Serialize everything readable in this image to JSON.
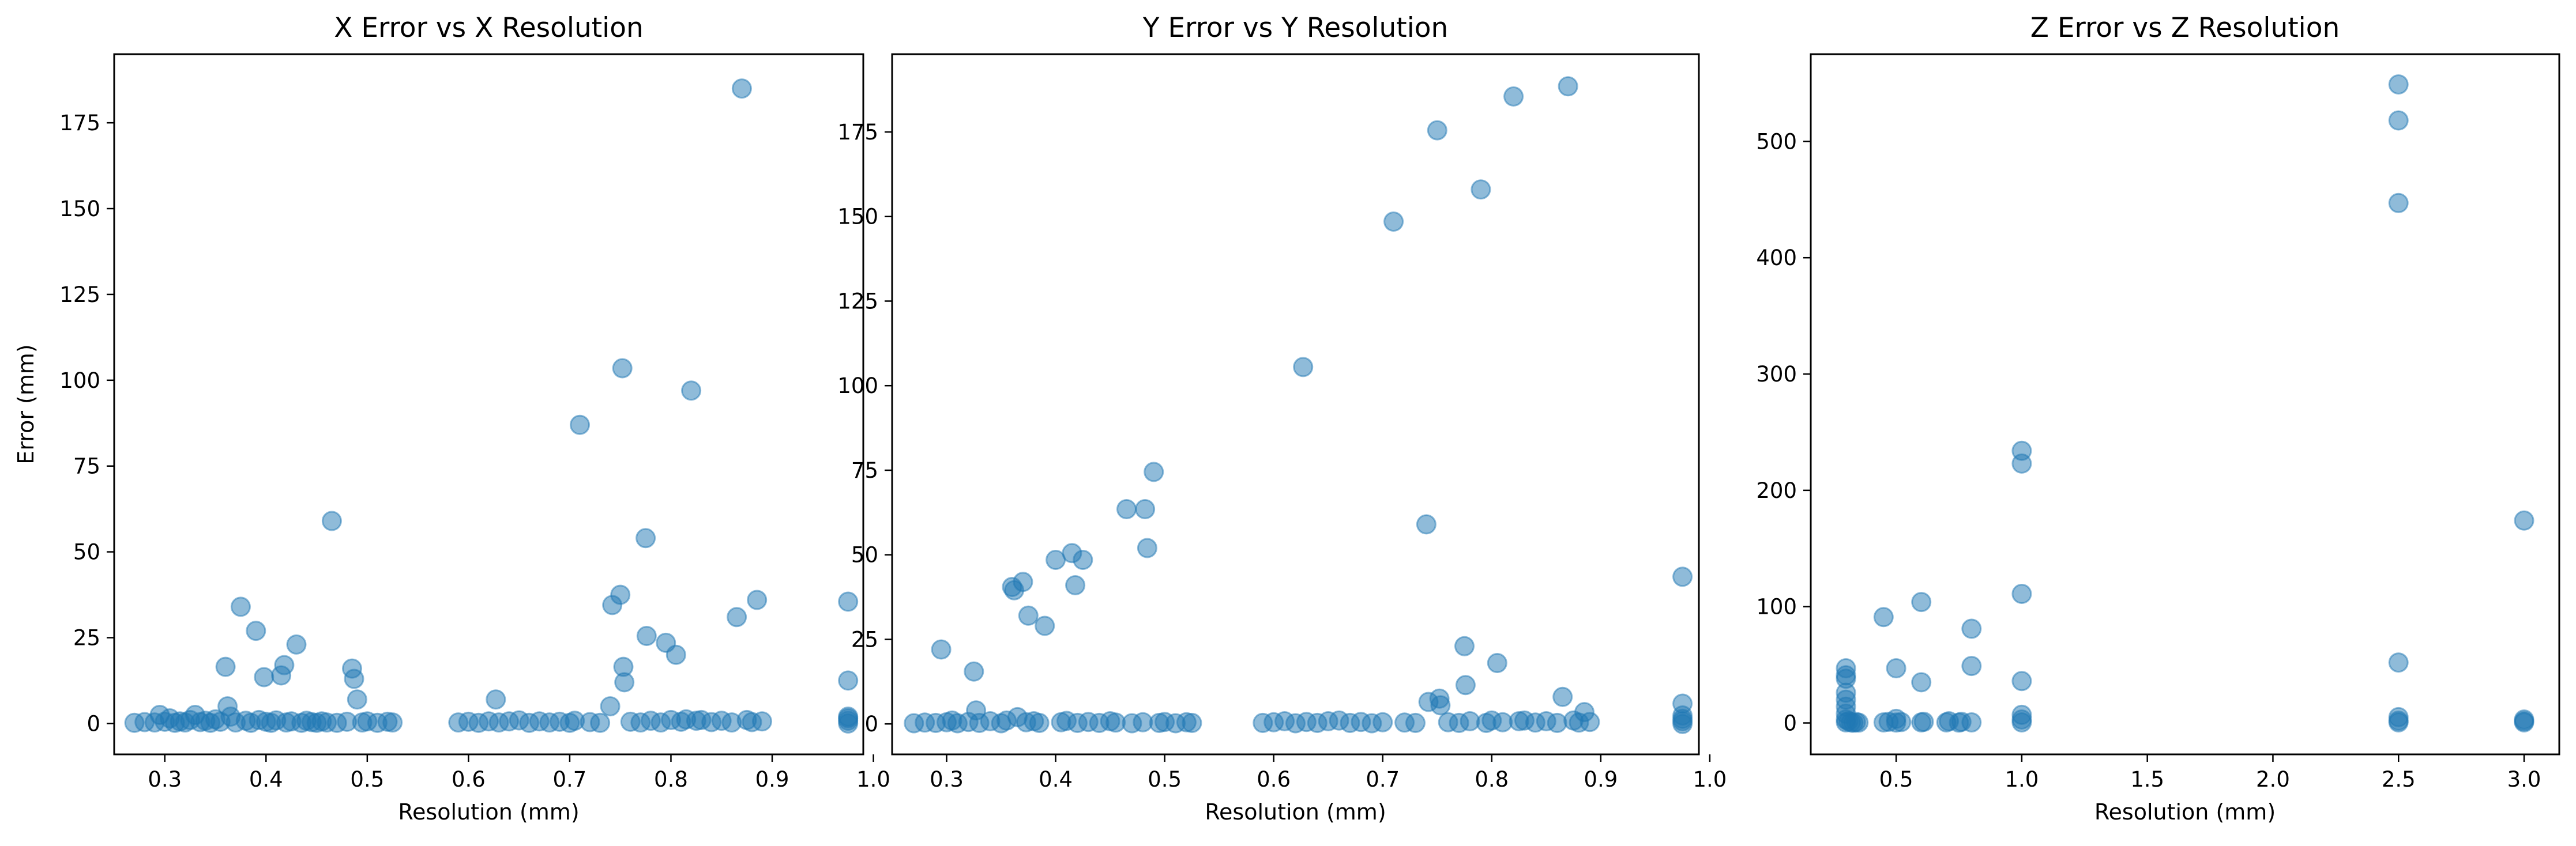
{
  "chart_data": [
    {
      "type": "scatter",
      "title": "X Error vs X Resolution",
      "xlabel": "Resolution (mm)",
      "ylabel": "Error (mm)",
      "xlim": [
        0.25,
        0.99
      ],
      "ylim": [
        -9,
        195
      ],
      "xticks": [
        0.3,
        0.4,
        0.5,
        0.6,
        0.7,
        0.8,
        0.9,
        1.0
      ],
      "xtick_labels": [
        "0.3",
        "0.4",
        "0.5",
        "0.6",
        "0.7",
        "0.8",
        "0.9",
        "1.0"
      ],
      "yticks": [
        0,
        25,
        50,
        75,
        100,
        125,
        150,
        175
      ],
      "ytick_labels": [
        "0",
        "25",
        "50",
        "75",
        "100",
        "125",
        "150",
        "175"
      ],
      "grid": false,
      "color": "#1f77b4",
      "points": [
        [
          0.27,
          0.2
        ],
        [
          0.28,
          0.4
        ],
        [
          0.29,
          0.3
        ],
        [
          0.295,
          2.5
        ],
        [
          0.3,
          0.5
        ],
        [
          0.305,
          1.5
        ],
        [
          0.31,
          0.2
        ],
        [
          0.315,
          0.6
        ],
        [
          0.32,
          0.3
        ],
        [
          0.325,
          1.0
        ],
        [
          0.33,
          2.5
        ],
        [
          0.335,
          0.4
        ],
        [
          0.34,
          0.8
        ],
        [
          0.345,
          0.2
        ],
        [
          0.35,
          1.2
        ],
        [
          0.355,
          0.5
        ],
        [
          0.36,
          16.5
        ],
        [
          0.362,
          5.0
        ],
        [
          0.365,
          2.0
        ],
        [
          0.37,
          0.3
        ],
        [
          0.375,
          34.0
        ],
        [
          0.38,
          0.8
        ],
        [
          0.385,
          0.2
        ],
        [
          0.39,
          27.0
        ],
        [
          0.393,
          1.0
        ],
        [
          0.398,
          13.5
        ],
        [
          0.4,
          0.5
        ],
        [
          0.405,
          0.2
        ],
        [
          0.41,
          0.9
        ],
        [
          0.415,
          14.0
        ],
        [
          0.418,
          17.0
        ],
        [
          0.42,
          0.3
        ],
        [
          0.425,
          0.6
        ],
        [
          0.43,
          23.0
        ],
        [
          0.435,
          0.2
        ],
        [
          0.44,
          0.8
        ],
        [
          0.445,
          0.4
        ],
        [
          0.45,
          0.2
        ],
        [
          0.455,
          0.6
        ],
        [
          0.46,
          0.3
        ],
        [
          0.465,
          59.0
        ],
        [
          0.47,
          0.2
        ],
        [
          0.48,
          0.5
        ],
        [
          0.485,
          16.0
        ],
        [
          0.487,
          13.0
        ],
        [
          0.49,
          7.0
        ],
        [
          0.495,
          0.3
        ],
        [
          0.5,
          0.6
        ],
        [
          0.51,
          0.2
        ],
        [
          0.52,
          0.5
        ],
        [
          0.525,
          0.3
        ],
        [
          0.59,
          0.3
        ],
        [
          0.6,
          0.5
        ],
        [
          0.61,
          0.2
        ],
        [
          0.62,
          0.6
        ],
        [
          0.627,
          7.0
        ],
        [
          0.63,
          0.3
        ],
        [
          0.64,
          0.6
        ],
        [
          0.65,
          0.9
        ],
        [
          0.66,
          0.2
        ],
        [
          0.67,
          0.6
        ],
        [
          0.68,
          0.3
        ],
        [
          0.69,
          0.5
        ],
        [
          0.7,
          0.2
        ],
        [
          0.705,
          0.8
        ],
        [
          0.71,
          87.0
        ],
        [
          0.72,
          0.4
        ],
        [
          0.73,
          0.2
        ],
        [
          0.74,
          5.0
        ],
        [
          0.742,
          34.5
        ],
        [
          0.75,
          37.5
        ],
        [
          0.752,
          103.5
        ],
        [
          0.753,
          16.5
        ],
        [
          0.754,
          12.0
        ],
        [
          0.76,
          0.5
        ],
        [
          0.77,
          0.3
        ],
        [
          0.775,
          54.0
        ],
        [
          0.776,
          25.5
        ],
        [
          0.78,
          0.8
        ],
        [
          0.79,
          0.3
        ],
        [
          0.795,
          23.5
        ],
        [
          0.8,
          1.0
        ],
        [
          0.805,
          20.0
        ],
        [
          0.81,
          0.5
        ],
        [
          0.815,
          1.2
        ],
        [
          0.82,
          97.0
        ],
        [
          0.825,
          0.8
        ],
        [
          0.83,
          1.0
        ],
        [
          0.84,
          0.4
        ],
        [
          0.85,
          0.8
        ],
        [
          0.86,
          0.3
        ],
        [
          0.865,
          31.0
        ],
        [
          0.87,
          185.0
        ],
        [
          0.875,
          1.0
        ],
        [
          0.88,
          0.4
        ],
        [
          0.885,
          36.0
        ],
        [
          0.89,
          0.6
        ],
        [
          0.975,
          0.0
        ],
        [
          0.975,
          0.8
        ],
        [
          0.975,
          1.5
        ],
        [
          0.975,
          2.0
        ],
        [
          0.975,
          12.5
        ],
        [
          0.975,
          35.5
        ]
      ]
    },
    {
      "type": "scatter",
      "title": "Y Error vs Y Resolution",
      "xlabel": "Resolution (mm)",
      "ylabel": "",
      "xlim": [
        0.25,
        0.99
      ],
      "ylim": [
        -9,
        198
      ],
      "xticks": [
        0.3,
        0.4,
        0.5,
        0.6,
        0.7,
        0.8,
        0.9,
        1.0
      ],
      "xtick_labels": [
        "0.3",
        "0.4",
        "0.5",
        "0.6",
        "0.7",
        "0.8",
        "0.9",
        "1.0"
      ],
      "yticks": [
        0,
        25,
        50,
        75,
        100,
        125,
        150,
        175
      ],
      "ytick_labels": [
        "0",
        "25",
        "50",
        "75",
        "100",
        "125",
        "150",
        "175"
      ],
      "grid": false,
      "color": "#1f77b4",
      "points": [
        [
          0.27,
          0.2
        ],
        [
          0.28,
          0.4
        ],
        [
          0.29,
          0.3
        ],
        [
          0.295,
          22.0
        ],
        [
          0.3,
          0.5
        ],
        [
          0.305,
          1.0
        ],
        [
          0.31,
          0.2
        ],
        [
          0.32,
          0.6
        ],
        [
          0.325,
          15.5
        ],
        [
          0.327,
          4.0
        ],
        [
          0.33,
          0.3
        ],
        [
          0.34,
          0.8
        ],
        [
          0.35,
          0.2
        ],
        [
          0.355,
          1.0
        ],
        [
          0.36,
          40.5
        ],
        [
          0.362,
          39.5
        ],
        [
          0.365,
          2.0
        ],
        [
          0.37,
          42.0
        ],
        [
          0.373,
          0.5
        ],
        [
          0.375,
          32.0
        ],
        [
          0.38,
          0.8
        ],
        [
          0.385,
          0.3
        ],
        [
          0.39,
          29.0
        ],
        [
          0.4,
          48.5
        ],
        [
          0.405,
          0.5
        ],
        [
          0.41,
          0.9
        ],
        [
          0.415,
          50.5
        ],
        [
          0.418,
          41.0
        ],
        [
          0.42,
          0.3
        ],
        [
          0.425,
          48.5
        ],
        [
          0.43,
          0.6
        ],
        [
          0.44,
          0.3
        ],
        [
          0.45,
          0.8
        ],
        [
          0.455,
          0.4
        ],
        [
          0.465,
          63.5
        ],
        [
          0.47,
          0.2
        ],
        [
          0.48,
          0.5
        ],
        [
          0.482,
          63.5
        ],
        [
          0.484,
          52.0
        ],
        [
          0.49,
          74.5
        ],
        [
          0.495,
          0.3
        ],
        [
          0.5,
          0.6
        ],
        [
          0.51,
          0.2
        ],
        [
          0.52,
          0.5
        ],
        [
          0.525,
          0.3
        ],
        [
          0.59,
          0.3
        ],
        [
          0.6,
          0.5
        ],
        [
          0.61,
          0.8
        ],
        [
          0.62,
          0.2
        ],
        [
          0.627,
          105.5
        ],
        [
          0.63,
          0.6
        ],
        [
          0.64,
          0.3
        ],
        [
          0.65,
          0.8
        ],
        [
          0.66,
          1.0
        ],
        [
          0.67,
          0.3
        ],
        [
          0.68,
          0.6
        ],
        [
          0.69,
          0.2
        ],
        [
          0.7,
          0.5
        ],
        [
          0.71,
          148.5
        ],
        [
          0.72,
          0.4
        ],
        [
          0.73,
          0.3
        ],
        [
          0.74,
          59.0
        ],
        [
          0.742,
          6.5
        ],
        [
          0.75,
          175.5
        ],
        [
          0.752,
          7.5
        ],
        [
          0.753,
          5.5
        ],
        [
          0.76,
          0.5
        ],
        [
          0.77,
          0.3
        ],
        [
          0.775,
          23.0
        ],
        [
          0.776,
          11.5
        ],
        [
          0.78,
          0.8
        ],
        [
          0.79,
          158.0
        ],
        [
          0.795,
          0.3
        ],
        [
          0.8,
          1.0
        ],
        [
          0.805,
          18.0
        ],
        [
          0.81,
          0.5
        ],
        [
          0.82,
          185.5
        ],
        [
          0.825,
          0.8
        ],
        [
          0.83,
          1.0
        ],
        [
          0.84,
          0.4
        ],
        [
          0.85,
          0.8
        ],
        [
          0.86,
          0.3
        ],
        [
          0.865,
          8.0
        ],
        [
          0.87,
          188.5
        ],
        [
          0.875,
          1.0
        ],
        [
          0.88,
          0.4
        ],
        [
          0.885,
          3.5
        ],
        [
          0.89,
          0.6
        ],
        [
          0.975,
          0.0
        ],
        [
          0.975,
          0.8
        ],
        [
          0.975,
          1.5
        ],
        [
          0.975,
          2.5
        ],
        [
          0.975,
          6.0
        ],
        [
          0.975,
          43.5
        ]
      ]
    },
    {
      "type": "scatter",
      "title": "Z Error vs Z Resolution",
      "xlabel": "Resolution (mm)",
      "ylabel": "",
      "xlim": [
        0.16,
        3.14
      ],
      "ylim": [
        -27,
        575
      ],
      "xticks": [
        0.5,
        1.0,
        1.5,
        2.0,
        2.5,
        3.0
      ],
      "xtick_labels": [
        "0.5",
        "1.0",
        "1.5",
        "2.0",
        "2.5",
        "3.0"
      ],
      "yticks": [
        0,
        100,
        200,
        300,
        400,
        500
      ],
      "ytick_labels": [
        "0",
        "100",
        "200",
        "300",
        "400",
        "500"
      ],
      "grid": false,
      "color": "#1f77b4",
      "points": [
        [
          0.3,
          0.5
        ],
        [
          0.3,
          3.0
        ],
        [
          0.3,
          8.0
        ],
        [
          0.3,
          14.0
        ],
        [
          0.3,
          20.0
        ],
        [
          0.3,
          26.0
        ],
        [
          0.3,
          38.0
        ],
        [
          0.3,
          41.0
        ],
        [
          0.3,
          47.0
        ],
        [
          0.31,
          1.5
        ],
        [
          0.32,
          0.5
        ],
        [
          0.33,
          0.2
        ],
        [
          0.34,
          0.8
        ],
        [
          0.35,
          0.3
        ],
        [
          0.45,
          91.0
        ],
        [
          0.45,
          0.5
        ],
        [
          0.47,
          1.0
        ],
        [
          0.5,
          47.0
        ],
        [
          0.5,
          3.5
        ],
        [
          0.5,
          0.4
        ],
        [
          0.52,
          0.8
        ],
        [
          0.6,
          104.0
        ],
        [
          0.6,
          35.0
        ],
        [
          0.6,
          0.5
        ],
        [
          0.61,
          1.0
        ],
        [
          0.7,
          0.5
        ],
        [
          0.71,
          1.5
        ],
        [
          0.75,
          0.3
        ],
        [
          0.76,
          1.0
        ],
        [
          0.8,
          81.0
        ],
        [
          0.8,
          49.0
        ],
        [
          0.8,
          0.5
        ],
        [
          1.0,
          234.0
        ],
        [
          1.0,
          223.0
        ],
        [
          1.0,
          111.0
        ],
        [
          1.0,
          36.0
        ],
        [
          1.0,
          7.0
        ],
        [
          1.0,
          3.0
        ],
        [
          1.0,
          0.5
        ],
        [
          2.5,
          549.0
        ],
        [
          2.5,
          518.0
        ],
        [
          2.5,
          447.0
        ],
        [
          2.5,
          52.0
        ],
        [
          2.5,
          5.0
        ],
        [
          2.5,
          2.0
        ],
        [
          2.5,
          0.5
        ],
        [
          3.0,
          174.0
        ],
        [
          3.0,
          3.0
        ],
        [
          3.0,
          1.5
        ],
        [
          3.0,
          0.5
        ]
      ]
    }
  ]
}
